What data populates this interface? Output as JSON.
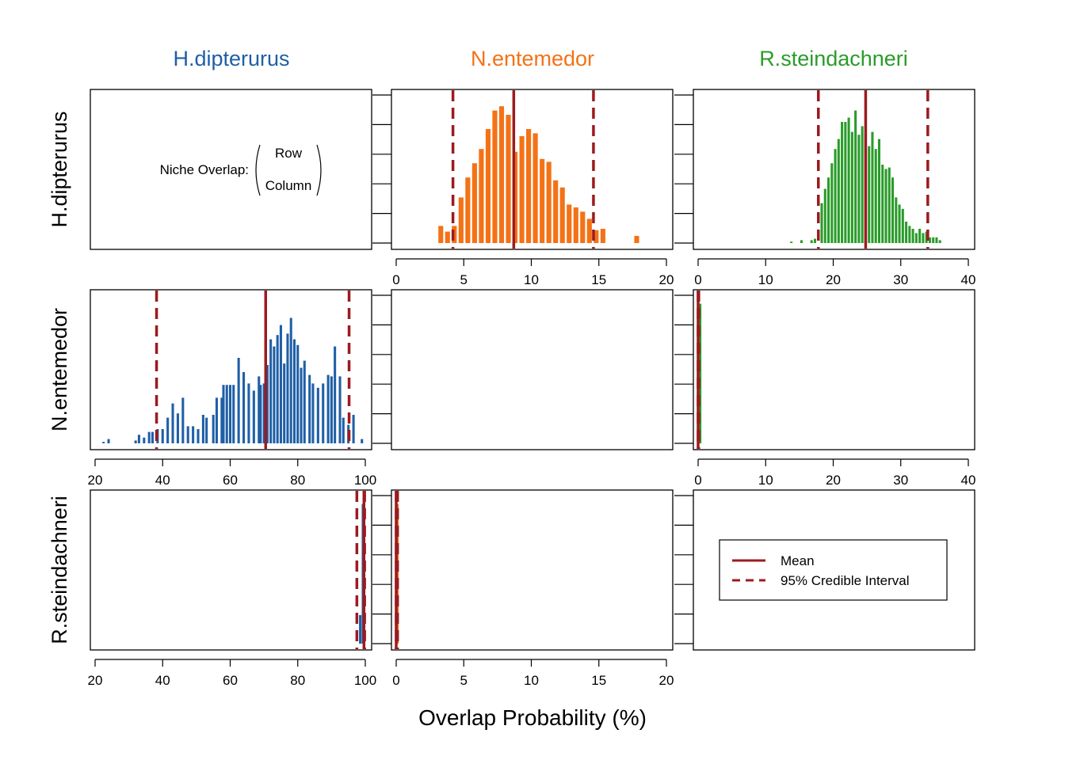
{
  "xlabel": "Overlap Probability (%)",
  "species": [
    "H.dipterurus",
    "N.entemedor",
    "R.steindachneri"
  ],
  "species_colors": [
    "#1f5fa6",
    "#f47216",
    "#2a9c2a"
  ],
  "mean_line_color": "#9b1b1f",
  "note": {
    "prefix": "Niche Overlap:",
    "numerator": "Row",
    "denominator": "Column"
  },
  "legend": {
    "mean": "Mean",
    "interval": "95% Credible Interval"
  },
  "chart_data": [
    {
      "type": "bar",
      "row": "H.dipterurus",
      "column": "N.entemedor",
      "xlim": [
        0,
        20
      ],
      "ticks": [
        "0",
        "5",
        "10",
        "15",
        "20"
      ],
      "bin_width": 0.5,
      "mean": 8.7,
      "ci": [
        4.2,
        14.6
      ],
      "bins": [
        [
          3.3,
          0.12
        ],
        [
          3.8,
          0.08
        ],
        [
          4.3,
          0.12
        ],
        [
          4.8,
          0.32
        ],
        [
          5.3,
          0.46
        ],
        [
          5.8,
          0.56
        ],
        [
          6.3,
          0.66
        ],
        [
          6.8,
          0.8
        ],
        [
          7.3,
          0.93
        ],
        [
          7.8,
          0.96
        ],
        [
          8.3,
          0.9
        ],
        [
          8.8,
          0.64
        ],
        [
          9.3,
          0.75
        ],
        [
          9.8,
          0.8
        ],
        [
          10.3,
          0.77
        ],
        [
          10.8,
          0.59
        ],
        [
          11.3,
          0.57
        ],
        [
          11.8,
          0.44
        ],
        [
          12.3,
          0.39
        ],
        [
          12.8,
          0.27
        ],
        [
          13.3,
          0.25
        ],
        [
          13.8,
          0.22
        ],
        [
          14.3,
          0.17
        ],
        [
          14.8,
          0.09
        ],
        [
          15.3,
          0.1
        ],
        [
          17.8,
          0.05
        ]
      ]
    },
    {
      "type": "bar",
      "row": "H.dipterurus",
      "column": "R.steindachneri",
      "xlim": [
        0,
        40
      ],
      "ticks": [
        "0",
        "10",
        "20",
        "30",
        "40"
      ],
      "bin_width": 0.5,
      "mean": 24.8,
      "ci": [
        17.8,
        34.0
      ],
      "bins": [
        [
          13.8,
          0.01
        ],
        [
          15.3,
          0.02
        ],
        [
          16.8,
          0.02
        ],
        [
          17.3,
          0.03
        ],
        [
          18.3,
          0.28
        ],
        [
          18.8,
          0.38
        ],
        [
          19.3,
          0.46
        ],
        [
          19.8,
          0.56
        ],
        [
          20.3,
          0.66
        ],
        [
          20.8,
          0.73
        ],
        [
          21.3,
          0.85
        ],
        [
          21.8,
          0.85
        ],
        [
          22.3,
          0.88
        ],
        [
          22.8,
          0.78
        ],
        [
          23.3,
          0.93
        ],
        [
          23.8,
          0.76
        ],
        [
          24.3,
          0.82
        ],
        [
          24.8,
          0.76
        ],
        [
          25.3,
          0.68
        ],
        [
          25.8,
          0.78
        ],
        [
          26.3,
          0.66
        ],
        [
          26.8,
          0.73
        ],
        [
          27.3,
          0.55
        ],
        [
          27.8,
          0.52
        ],
        [
          28.3,
          0.53
        ],
        [
          28.8,
          0.46
        ],
        [
          29.3,
          0.32
        ],
        [
          29.8,
          0.27
        ],
        [
          30.3,
          0.24
        ],
        [
          30.8,
          0.15
        ],
        [
          31.3,
          0.12
        ],
        [
          31.8,
          0.1
        ],
        [
          32.3,
          0.07
        ],
        [
          32.8,
          0.1
        ],
        [
          33.3,
          0.07
        ],
        [
          33.8,
          0.08
        ],
        [
          34.3,
          0.04
        ],
        [
          34.8,
          0.04
        ],
        [
          35.3,
          0.04
        ],
        [
          35.8,
          0.02
        ]
      ]
    },
    {
      "type": "bar",
      "row": "N.entemedor",
      "column": "H.dipterurus",
      "xlim": [
        20,
        100
      ],
      "ticks": [
        "20",
        "40",
        "60",
        "80",
        "100"
      ],
      "bin_width": 1,
      "mean": 70.5,
      "ci": [
        38.2,
        95.2
      ],
      "bins": [
        [
          22.5,
          0.01
        ],
        [
          24,
          0.03
        ],
        [
          32,
          0.02
        ],
        [
          33,
          0.06
        ],
        [
          34.5,
          0.04
        ],
        [
          36,
          0.08
        ],
        [
          37,
          0.08
        ],
        [
          38.5,
          0.1
        ],
        [
          40,
          0.1
        ],
        [
          41.5,
          0.18
        ],
        [
          43,
          0.28
        ],
        [
          44.5,
          0.21
        ],
        [
          46,
          0.32
        ],
        [
          47.5,
          0.12
        ],
        [
          49,
          0.12
        ],
        [
          50.5,
          0.1
        ],
        [
          52,
          0.2
        ],
        [
          53,
          0.18
        ],
        [
          55,
          0.2
        ],
        [
          56,
          0.32
        ],
        [
          57.5,
          0.32
        ],
        [
          58,
          0.41
        ],
        [
          59,
          0.41
        ],
        [
          60,
          0.41
        ],
        [
          61,
          0.41
        ],
        [
          62.5,
          0.6
        ],
        [
          64,
          0.5
        ],
        [
          65.5,
          0.42
        ],
        [
          67,
          0.37
        ],
        [
          68.5,
          0.47
        ],
        [
          69,
          0.41
        ],
        [
          70,
          0.42
        ],
        [
          71,
          0.55
        ],
        [
          72,
          0.73
        ],
        [
          73,
          0.68
        ],
        [
          74,
          0.76
        ],
        [
          75,
          0.83
        ],
        [
          76,
          0.56
        ],
        [
          77,
          0.77
        ],
        [
          78,
          0.88
        ],
        [
          79,
          0.73
        ],
        [
          80,
          0.69
        ],
        [
          81,
          0.53
        ],
        [
          82,
          0.58
        ],
        [
          83.5,
          0.48
        ],
        [
          84.5,
          0.42
        ],
        [
          86,
          0.39
        ],
        [
          87.5,
          0.42
        ],
        [
          89,
          0.48
        ],
        [
          90,
          0.47
        ],
        [
          91,
          0.68
        ],
        [
          92.5,
          0.47
        ],
        [
          93.5,
          0.18
        ],
        [
          95,
          0.13
        ],
        [
          96.5,
          0.2
        ],
        [
          99,
          0.03
        ]
      ]
    },
    {
      "type": "bar",
      "row": "N.entemedor",
      "column": "R.steindachneri",
      "xlim": [
        0,
        40
      ],
      "ticks": [
        "0",
        "10",
        "20",
        "30",
        "40"
      ],
      "bin_width": 0.5,
      "mean": 0.0,
      "ci": [
        0.0,
        0.1
      ],
      "bins": [
        [
          0.3,
          0.98
        ]
      ]
    },
    {
      "type": "bar",
      "row": "R.steindachneri",
      "column": "H.dipterurus",
      "xlim": [
        20,
        100
      ],
      "ticks": [
        "20",
        "40",
        "60",
        "80",
        "100"
      ],
      "bin_width": 1,
      "mean": 99.6,
      "ci": [
        97.5,
        99.8
      ],
      "bins": [
        [
          98.5,
          0.2
        ],
        [
          99.3,
          0.98
        ]
      ]
    },
    {
      "type": "bar",
      "row": "R.steindachneri",
      "column": "N.entemedor",
      "xlim": [
        0,
        20
      ],
      "ticks": [
        "0",
        "5",
        "10",
        "15",
        "20"
      ],
      "bin_width": 0.2,
      "mean": 0.0,
      "ci": [
        0.0,
        0.1
      ],
      "bins": [
        [
          0.1,
          0.98
        ]
      ]
    }
  ]
}
